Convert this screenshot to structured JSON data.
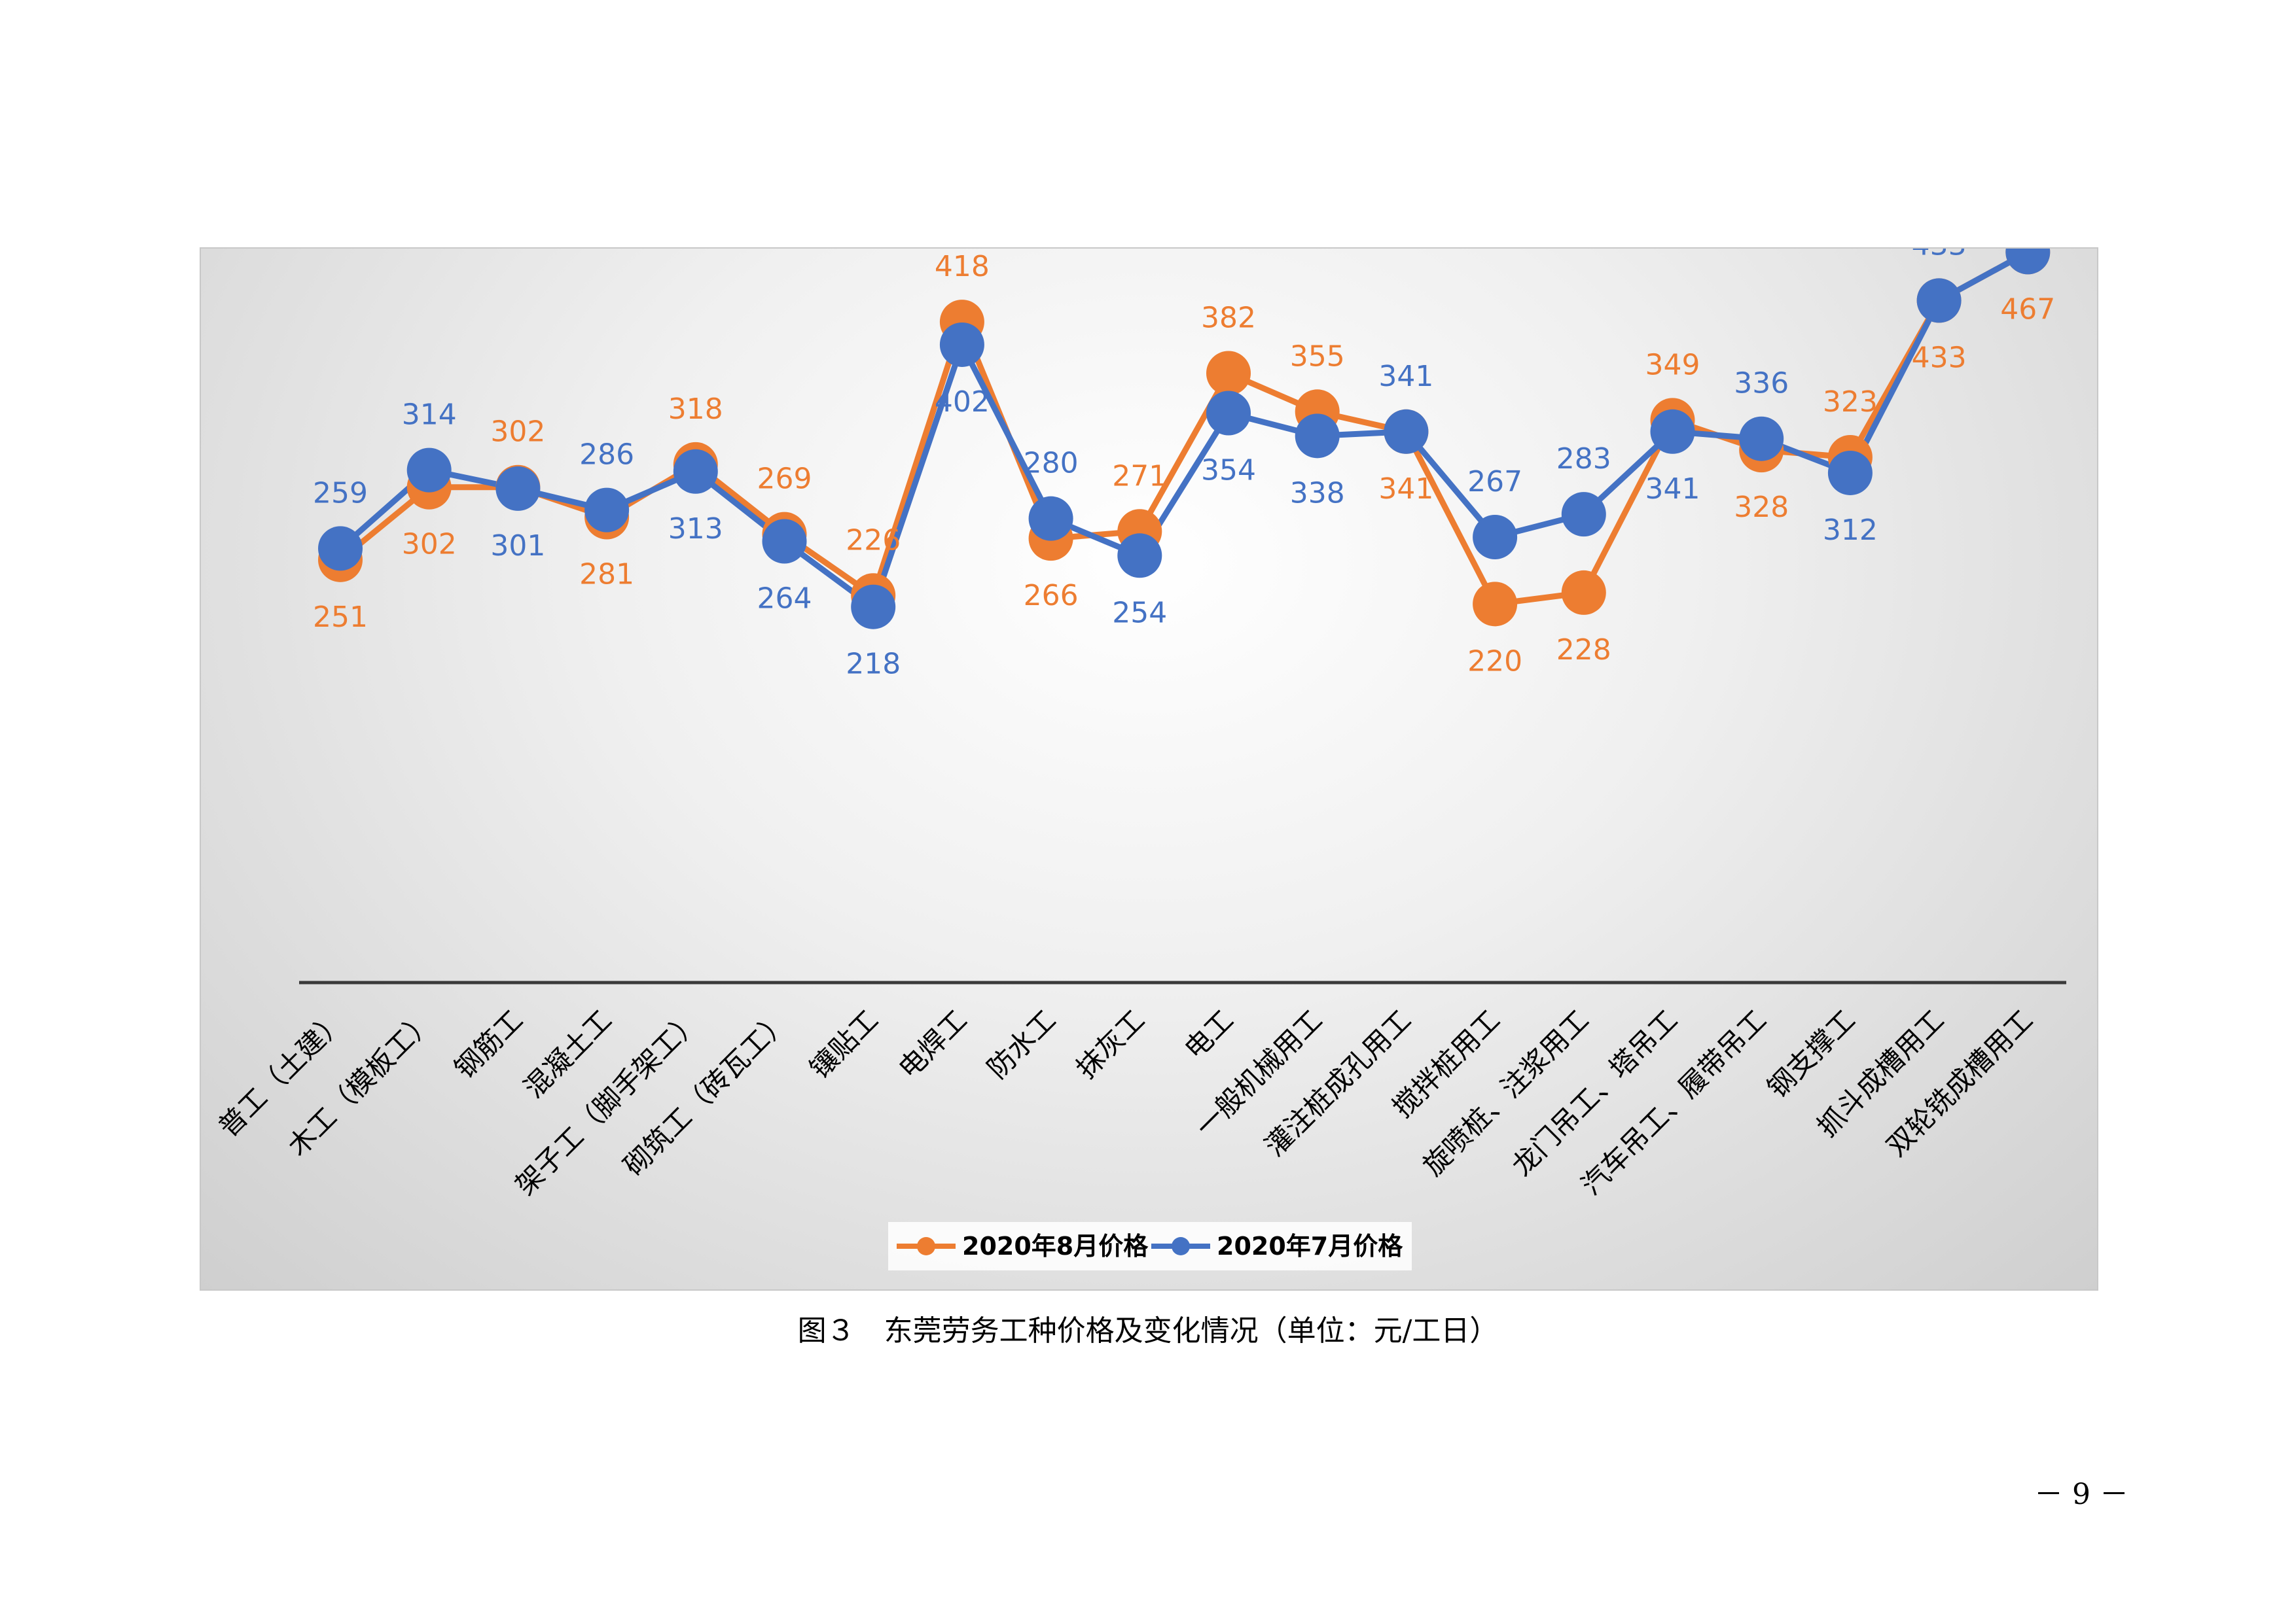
{
  "chart_data": {
    "type": "line",
    "categories": [
      "普工（土建）",
      "木工（模板工）",
      "钢筋工",
      "混凝土工",
      "架子工（脚手架工）",
      "砌筑工（砖瓦工）",
      "镶贴工",
      "电焊工",
      "防水工",
      "抹灰工",
      "电工",
      "一般机械用工",
      "灌注桩成孔用工",
      "搅拌桩用工",
      "旋喷桩、注浆用工",
      "龙门吊工、塔吊工",
      "汽车吊工、履带吊工",
      "钢支撑工",
      "抓斗成槽用工",
      "双轮铣成槽用工"
    ],
    "series": [
      {
        "name": "2020年8月价格",
        "color": "#ED7D31",
        "values": [
          251,
          302,
          302,
          281,
          318,
          269,
          226,
          418,
          266,
          271,
          382,
          355,
          341,
          220,
          228,
          349,
          328,
          323,
          433,
          467
        ]
      },
      {
        "name": "2020年7月价格",
        "color": "#4472C4",
        "values": [
          259,
          314,
          301,
          286,
          313,
          264,
          218,
          402,
          280,
          254,
          354,
          338,
          341,
          267,
          283,
          341,
          336,
          312,
          433,
          467
        ]
      }
    ],
    "legend_position": "bottom",
    "grid": false
  },
  "caption": "图３　东莞劳务工种价格及变化情况（单位：元/工日）",
  "page_number": "－ 9 －"
}
